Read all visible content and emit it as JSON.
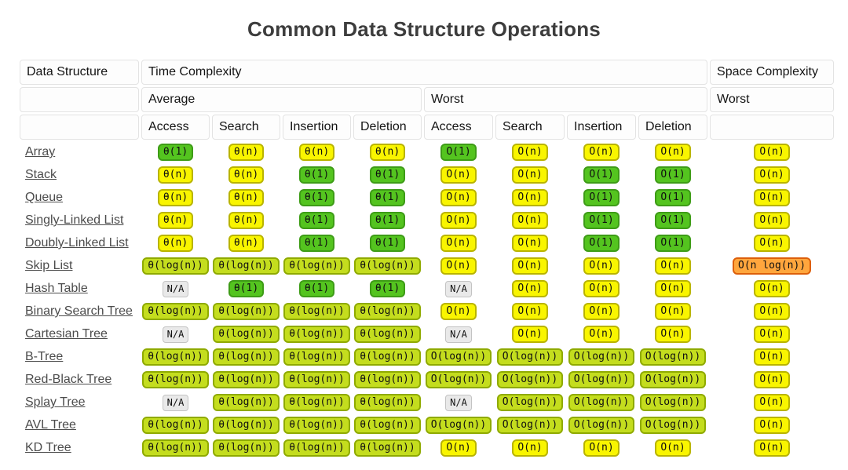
{
  "title": "Common Data Structure Operations",
  "colors": {
    "excellent": {
      "bg": "#54C41F",
      "border": "#3E9C17"
    },
    "good": {
      "bg": "#C4DD1E",
      "border": "#8FAA00"
    },
    "fair": {
      "bg": "#F9F500",
      "border": "#B9B400"
    },
    "bad": {
      "bg": "#FFA63D",
      "border": "#DD5F0A"
    },
    "na": {
      "bg": "#E9E9E9",
      "border": "#C3C3C3"
    }
  },
  "header": {
    "data_structure": "Data Structure",
    "time_complexity": "Time Complexity",
    "space_complexity": "Space Complexity",
    "average": "Average",
    "worst": "Worst",
    "space_worst": "Worst",
    "operations": [
      "Access",
      "Search",
      "Insertion",
      "Deletion"
    ]
  },
  "rows": [
    {
      "name": "Array",
      "cells": [
        {
          "text": "θ(1)",
          "level": "excellent"
        },
        {
          "text": "θ(n)",
          "level": "fair"
        },
        {
          "text": "θ(n)",
          "level": "fair"
        },
        {
          "text": "θ(n)",
          "level": "fair"
        },
        {
          "text": "O(1)",
          "level": "excellent"
        },
        {
          "text": "O(n)",
          "level": "fair"
        },
        {
          "text": "O(n)",
          "level": "fair"
        },
        {
          "text": "O(n)",
          "level": "fair"
        },
        {
          "text": "O(n)",
          "level": "fair"
        }
      ]
    },
    {
      "name": "Stack",
      "cells": [
        {
          "text": "θ(n)",
          "level": "fair"
        },
        {
          "text": "θ(n)",
          "level": "fair"
        },
        {
          "text": "θ(1)",
          "level": "excellent"
        },
        {
          "text": "θ(1)",
          "level": "excellent"
        },
        {
          "text": "O(n)",
          "level": "fair"
        },
        {
          "text": "O(n)",
          "level": "fair"
        },
        {
          "text": "O(1)",
          "level": "excellent"
        },
        {
          "text": "O(1)",
          "level": "excellent"
        },
        {
          "text": "O(n)",
          "level": "fair"
        }
      ]
    },
    {
      "name": "Queue",
      "cells": [
        {
          "text": "θ(n)",
          "level": "fair"
        },
        {
          "text": "θ(n)",
          "level": "fair"
        },
        {
          "text": "θ(1)",
          "level": "excellent"
        },
        {
          "text": "θ(1)",
          "level": "excellent"
        },
        {
          "text": "O(n)",
          "level": "fair"
        },
        {
          "text": "O(n)",
          "level": "fair"
        },
        {
          "text": "O(1)",
          "level": "excellent"
        },
        {
          "text": "O(1)",
          "level": "excellent"
        },
        {
          "text": "O(n)",
          "level": "fair"
        }
      ]
    },
    {
      "name": "Singly-Linked List",
      "cells": [
        {
          "text": "θ(n)",
          "level": "fair"
        },
        {
          "text": "θ(n)",
          "level": "fair"
        },
        {
          "text": "θ(1)",
          "level": "excellent"
        },
        {
          "text": "θ(1)",
          "level": "excellent"
        },
        {
          "text": "O(n)",
          "level": "fair"
        },
        {
          "text": "O(n)",
          "level": "fair"
        },
        {
          "text": "O(1)",
          "level": "excellent"
        },
        {
          "text": "O(1)",
          "level": "excellent"
        },
        {
          "text": "O(n)",
          "level": "fair"
        }
      ]
    },
    {
      "name": "Doubly-Linked List",
      "cells": [
        {
          "text": "θ(n)",
          "level": "fair"
        },
        {
          "text": "θ(n)",
          "level": "fair"
        },
        {
          "text": "θ(1)",
          "level": "excellent"
        },
        {
          "text": "θ(1)",
          "level": "excellent"
        },
        {
          "text": "O(n)",
          "level": "fair"
        },
        {
          "text": "O(n)",
          "level": "fair"
        },
        {
          "text": "O(1)",
          "level": "excellent"
        },
        {
          "text": "O(1)",
          "level": "excellent"
        },
        {
          "text": "O(n)",
          "level": "fair"
        }
      ]
    },
    {
      "name": "Skip List",
      "cells": [
        {
          "text": "θ(log(n))",
          "level": "good"
        },
        {
          "text": "θ(log(n))",
          "level": "good"
        },
        {
          "text": "θ(log(n))",
          "level": "good"
        },
        {
          "text": "θ(log(n))",
          "level": "good"
        },
        {
          "text": "O(n)",
          "level": "fair"
        },
        {
          "text": "O(n)",
          "level": "fair"
        },
        {
          "text": "O(n)",
          "level": "fair"
        },
        {
          "text": "O(n)",
          "level": "fair"
        },
        {
          "text": "O(n log(n))",
          "level": "bad"
        }
      ]
    },
    {
      "name": "Hash Table",
      "cells": [
        {
          "text": "N/A",
          "level": "na"
        },
        {
          "text": "θ(1)",
          "level": "excellent"
        },
        {
          "text": "θ(1)",
          "level": "excellent"
        },
        {
          "text": "θ(1)",
          "level": "excellent"
        },
        {
          "text": "N/A",
          "level": "na"
        },
        {
          "text": "O(n)",
          "level": "fair"
        },
        {
          "text": "O(n)",
          "level": "fair"
        },
        {
          "text": "O(n)",
          "level": "fair"
        },
        {
          "text": "O(n)",
          "level": "fair"
        }
      ]
    },
    {
      "name": "Binary Search Tree",
      "cells": [
        {
          "text": "θ(log(n))",
          "level": "good"
        },
        {
          "text": "θ(log(n))",
          "level": "good"
        },
        {
          "text": "θ(log(n))",
          "level": "good"
        },
        {
          "text": "θ(log(n))",
          "level": "good"
        },
        {
          "text": "O(n)",
          "level": "fair"
        },
        {
          "text": "O(n)",
          "level": "fair"
        },
        {
          "text": "O(n)",
          "level": "fair"
        },
        {
          "text": "O(n)",
          "level": "fair"
        },
        {
          "text": "O(n)",
          "level": "fair"
        }
      ]
    },
    {
      "name": "Cartesian Tree",
      "cells": [
        {
          "text": "N/A",
          "level": "na"
        },
        {
          "text": "θ(log(n))",
          "level": "good"
        },
        {
          "text": "θ(log(n))",
          "level": "good"
        },
        {
          "text": "θ(log(n))",
          "level": "good"
        },
        {
          "text": "N/A",
          "level": "na"
        },
        {
          "text": "O(n)",
          "level": "fair"
        },
        {
          "text": "O(n)",
          "level": "fair"
        },
        {
          "text": "O(n)",
          "level": "fair"
        },
        {
          "text": "O(n)",
          "level": "fair"
        }
      ]
    },
    {
      "name": "B-Tree",
      "cells": [
        {
          "text": "θ(log(n))",
          "level": "good"
        },
        {
          "text": "θ(log(n))",
          "level": "good"
        },
        {
          "text": "θ(log(n))",
          "level": "good"
        },
        {
          "text": "θ(log(n))",
          "level": "good"
        },
        {
          "text": "O(log(n))",
          "level": "good"
        },
        {
          "text": "O(log(n))",
          "level": "good"
        },
        {
          "text": "O(log(n))",
          "level": "good"
        },
        {
          "text": "O(log(n))",
          "level": "good"
        },
        {
          "text": "O(n)",
          "level": "fair"
        }
      ]
    },
    {
      "name": "Red-Black Tree",
      "cells": [
        {
          "text": "θ(log(n))",
          "level": "good"
        },
        {
          "text": "θ(log(n))",
          "level": "good"
        },
        {
          "text": "θ(log(n))",
          "level": "good"
        },
        {
          "text": "θ(log(n))",
          "level": "good"
        },
        {
          "text": "O(log(n))",
          "level": "good"
        },
        {
          "text": "O(log(n))",
          "level": "good"
        },
        {
          "text": "O(log(n))",
          "level": "good"
        },
        {
          "text": "O(log(n))",
          "level": "good"
        },
        {
          "text": "O(n)",
          "level": "fair"
        }
      ]
    },
    {
      "name": "Splay Tree",
      "cells": [
        {
          "text": "N/A",
          "level": "na"
        },
        {
          "text": "θ(log(n))",
          "level": "good"
        },
        {
          "text": "θ(log(n))",
          "level": "good"
        },
        {
          "text": "θ(log(n))",
          "level": "good"
        },
        {
          "text": "N/A",
          "level": "na"
        },
        {
          "text": "O(log(n))",
          "level": "good"
        },
        {
          "text": "O(log(n))",
          "level": "good"
        },
        {
          "text": "O(log(n))",
          "level": "good"
        },
        {
          "text": "O(n)",
          "level": "fair"
        }
      ]
    },
    {
      "name": "AVL Tree",
      "cells": [
        {
          "text": "θ(log(n))",
          "level": "good"
        },
        {
          "text": "θ(log(n))",
          "level": "good"
        },
        {
          "text": "θ(log(n))",
          "level": "good"
        },
        {
          "text": "θ(log(n))",
          "level": "good"
        },
        {
          "text": "O(log(n))",
          "level": "good"
        },
        {
          "text": "O(log(n))",
          "level": "good"
        },
        {
          "text": "O(log(n))",
          "level": "good"
        },
        {
          "text": "O(log(n))",
          "level": "good"
        },
        {
          "text": "O(n)",
          "level": "fair"
        }
      ]
    },
    {
      "name": "KD Tree",
      "cells": [
        {
          "text": "θ(log(n))",
          "level": "good"
        },
        {
          "text": "θ(log(n))",
          "level": "good"
        },
        {
          "text": "θ(log(n))",
          "level": "good"
        },
        {
          "text": "θ(log(n))",
          "level": "good"
        },
        {
          "text": "O(n)",
          "level": "fair"
        },
        {
          "text": "O(n)",
          "level": "fair"
        },
        {
          "text": "O(n)",
          "level": "fair"
        },
        {
          "text": "O(n)",
          "level": "fair"
        },
        {
          "text": "O(n)",
          "level": "fair"
        }
      ]
    }
  ]
}
